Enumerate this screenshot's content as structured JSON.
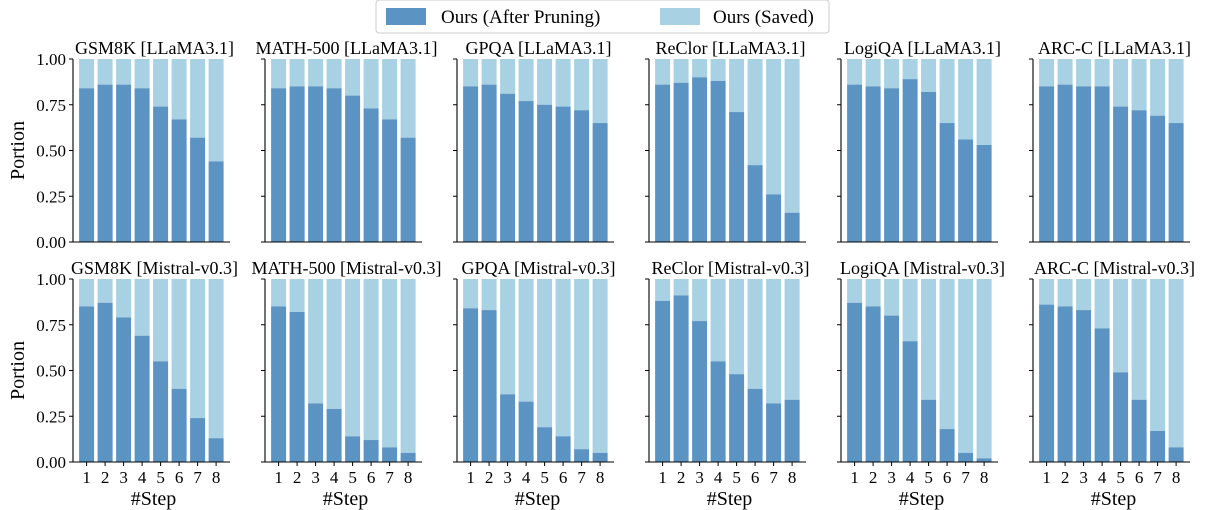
{
  "legend": {
    "items": [
      {
        "label": "Ours (After Pruning)",
        "color": "#5b93c3"
      },
      {
        "label": "Ours (Saved)",
        "color": "#a9d1e4"
      }
    ]
  },
  "chart_data": [
    {
      "type": "bar",
      "stacked": true,
      "title": "GSM8K [LLaMA3.1]",
      "categories": [
        "1",
        "2",
        "3",
        "4",
        "5",
        "6",
        "7",
        "8"
      ],
      "xlabel": "",
      "ylabel": "Portion",
      "ylim": [
        0,
        1
      ],
      "yticks": [
        "0.00",
        "0.25",
        "0.50",
        "0.75",
        "1.00"
      ],
      "series": [
        {
          "name": "Ours (After Pruning)",
          "values": [
            0.84,
            0.86,
            0.86,
            0.84,
            0.74,
            0.67,
            0.57,
            0.44
          ]
        },
        {
          "name": "Ours (Saved)",
          "values": [
            0.16,
            0.14,
            0.14,
            0.16,
            0.26,
            0.33,
            0.43,
            0.56
          ]
        }
      ]
    },
    {
      "type": "bar",
      "stacked": true,
      "title": "MATH-500 [LLaMA3.1]",
      "categories": [
        "1",
        "2",
        "3",
        "4",
        "5",
        "6",
        "7",
        "8"
      ],
      "xlabel": "",
      "ylabel": "",
      "ylim": [
        0,
        1
      ],
      "series": [
        {
          "name": "Ours (After Pruning)",
          "values": [
            0.84,
            0.85,
            0.85,
            0.84,
            0.8,
            0.73,
            0.67,
            0.57
          ]
        },
        {
          "name": "Ours (Saved)",
          "values": [
            0.16,
            0.15,
            0.15,
            0.16,
            0.2,
            0.27,
            0.33,
            0.43
          ]
        }
      ]
    },
    {
      "type": "bar",
      "stacked": true,
      "title": "GPQA [LLaMA3.1]",
      "categories": [
        "1",
        "2",
        "3",
        "4",
        "5",
        "6",
        "7",
        "8"
      ],
      "xlabel": "",
      "ylabel": "",
      "ylim": [
        0,
        1
      ],
      "series": [
        {
          "name": "Ours (After Pruning)",
          "values": [
            0.85,
            0.86,
            0.81,
            0.77,
            0.75,
            0.74,
            0.72,
            0.65
          ]
        },
        {
          "name": "Ours (Saved)",
          "values": [
            0.15,
            0.14,
            0.19,
            0.23,
            0.25,
            0.26,
            0.28,
            0.35
          ]
        }
      ]
    },
    {
      "type": "bar",
      "stacked": true,
      "title": "ReClor [LLaMA3.1]",
      "categories": [
        "1",
        "2",
        "3",
        "4",
        "5",
        "6",
        "7",
        "8"
      ],
      "xlabel": "",
      "ylabel": "",
      "ylim": [
        0,
        1
      ],
      "series": [
        {
          "name": "Ours (After Pruning)",
          "values": [
            0.86,
            0.87,
            0.9,
            0.88,
            0.71,
            0.42,
            0.26,
            0.16
          ]
        },
        {
          "name": "Ours (Saved)",
          "values": [
            0.14,
            0.13,
            0.1,
            0.12,
            0.29,
            0.58,
            0.74,
            0.84
          ]
        }
      ]
    },
    {
      "type": "bar",
      "stacked": true,
      "title": "LogiQA [LLaMA3.1]",
      "categories": [
        "1",
        "2",
        "3",
        "4",
        "5",
        "6",
        "7",
        "8"
      ],
      "xlabel": "",
      "ylabel": "",
      "ylim": [
        0,
        1
      ],
      "series": [
        {
          "name": "Ours (After Pruning)",
          "values": [
            0.86,
            0.85,
            0.84,
            0.89,
            0.82,
            0.65,
            0.56,
            0.53
          ]
        },
        {
          "name": "Ours (Saved)",
          "values": [
            0.14,
            0.15,
            0.16,
            0.11,
            0.18,
            0.35,
            0.44,
            0.47
          ]
        }
      ]
    },
    {
      "type": "bar",
      "stacked": true,
      "title": "ARC-C [LLaMA3.1]",
      "categories": [
        "1",
        "2",
        "3",
        "4",
        "5",
        "6",
        "7",
        "8"
      ],
      "xlabel": "",
      "ylabel": "",
      "ylim": [
        0,
        1
      ],
      "series": [
        {
          "name": "Ours (After Pruning)",
          "values": [
            0.85,
            0.86,
            0.85,
            0.85,
            0.74,
            0.72,
            0.69,
            0.65
          ]
        },
        {
          "name": "Ours (Saved)",
          "values": [
            0.15,
            0.14,
            0.15,
            0.15,
            0.26,
            0.28,
            0.31,
            0.35
          ]
        }
      ]
    },
    {
      "type": "bar",
      "stacked": true,
      "title": "GSM8K [Mistral-v0.3]",
      "categories": [
        "1",
        "2",
        "3",
        "4",
        "5",
        "6",
        "7",
        "8"
      ],
      "xlabel": "#Step",
      "ylabel": "Portion",
      "ylim": [
        0,
        1
      ],
      "yticks": [
        "0.00",
        "0.25",
        "0.50",
        "0.75",
        "1.00"
      ],
      "series": [
        {
          "name": "Ours (After Pruning)",
          "values": [
            0.85,
            0.87,
            0.79,
            0.69,
            0.55,
            0.4,
            0.24,
            0.13
          ]
        },
        {
          "name": "Ours (Saved)",
          "values": [
            0.15,
            0.13,
            0.21,
            0.31,
            0.45,
            0.6,
            0.76,
            0.87
          ]
        }
      ]
    },
    {
      "type": "bar",
      "stacked": true,
      "title": "MATH-500 [Mistral-v0.3]",
      "categories": [
        "1",
        "2",
        "3",
        "4",
        "5",
        "6",
        "7",
        "8"
      ],
      "xlabel": "#Step",
      "ylabel": "",
      "ylim": [
        0,
        1
      ],
      "series": [
        {
          "name": "Ours (After Pruning)",
          "values": [
            0.85,
            0.82,
            0.32,
            0.29,
            0.14,
            0.12,
            0.08,
            0.05
          ]
        },
        {
          "name": "Ours (Saved)",
          "values": [
            0.15,
            0.18,
            0.68,
            0.71,
            0.86,
            0.88,
            0.92,
            0.95
          ]
        }
      ]
    },
    {
      "type": "bar",
      "stacked": true,
      "title": "GPQA [Mistral-v0.3]",
      "categories": [
        "1",
        "2",
        "3",
        "4",
        "5",
        "6",
        "7",
        "8"
      ],
      "xlabel": "#Step",
      "ylabel": "",
      "ylim": [
        0,
        1
      ],
      "series": [
        {
          "name": "Ours (After Pruning)",
          "values": [
            0.84,
            0.83,
            0.37,
            0.33,
            0.19,
            0.14,
            0.07,
            0.05
          ]
        },
        {
          "name": "Ours (Saved)",
          "values": [
            0.16,
            0.17,
            0.63,
            0.67,
            0.81,
            0.86,
            0.93,
            0.95
          ]
        }
      ]
    },
    {
      "type": "bar",
      "stacked": true,
      "title": "ReClor [Mistral-v0.3]",
      "categories": [
        "1",
        "2",
        "3",
        "4",
        "5",
        "6",
        "7",
        "8"
      ],
      "xlabel": "#Step",
      "ylabel": "",
      "ylim": [
        0,
        1
      ],
      "series": [
        {
          "name": "Ours (After Pruning)",
          "values": [
            0.88,
            0.91,
            0.77,
            0.55,
            0.48,
            0.4,
            0.32,
            0.34
          ]
        },
        {
          "name": "Ours (Saved)",
          "values": [
            0.12,
            0.09,
            0.23,
            0.45,
            0.52,
            0.6,
            0.68,
            0.66
          ]
        }
      ]
    },
    {
      "type": "bar",
      "stacked": true,
      "title": "LogiQA [Mistral-v0.3]",
      "categories": [
        "1",
        "2",
        "3",
        "4",
        "5",
        "6",
        "7",
        "8"
      ],
      "xlabel": "#Step",
      "ylabel": "",
      "ylim": [
        0,
        1
      ],
      "series": [
        {
          "name": "Ours (After Pruning)",
          "values": [
            0.87,
            0.85,
            0.8,
            0.66,
            0.34,
            0.18,
            0.05,
            0.02
          ]
        },
        {
          "name": "Ours (Saved)",
          "values": [
            0.13,
            0.15,
            0.2,
            0.34,
            0.66,
            0.82,
            0.95,
            0.98
          ]
        }
      ]
    },
    {
      "type": "bar",
      "stacked": true,
      "title": "ARC-C [Mistral-v0.3]",
      "categories": [
        "1",
        "2",
        "3",
        "4",
        "5",
        "6",
        "7",
        "8"
      ],
      "xlabel": "#Step",
      "ylabel": "",
      "ylim": [
        0,
        1
      ],
      "series": [
        {
          "name": "Ours (After Pruning)",
          "values": [
            0.86,
            0.85,
            0.83,
            0.73,
            0.49,
            0.34,
            0.17,
            0.08
          ]
        },
        {
          "name": "Ours (Saved)",
          "values": [
            0.14,
            0.15,
            0.17,
            0.27,
            0.51,
            0.66,
            0.83,
            0.92
          ]
        }
      ]
    }
  ]
}
